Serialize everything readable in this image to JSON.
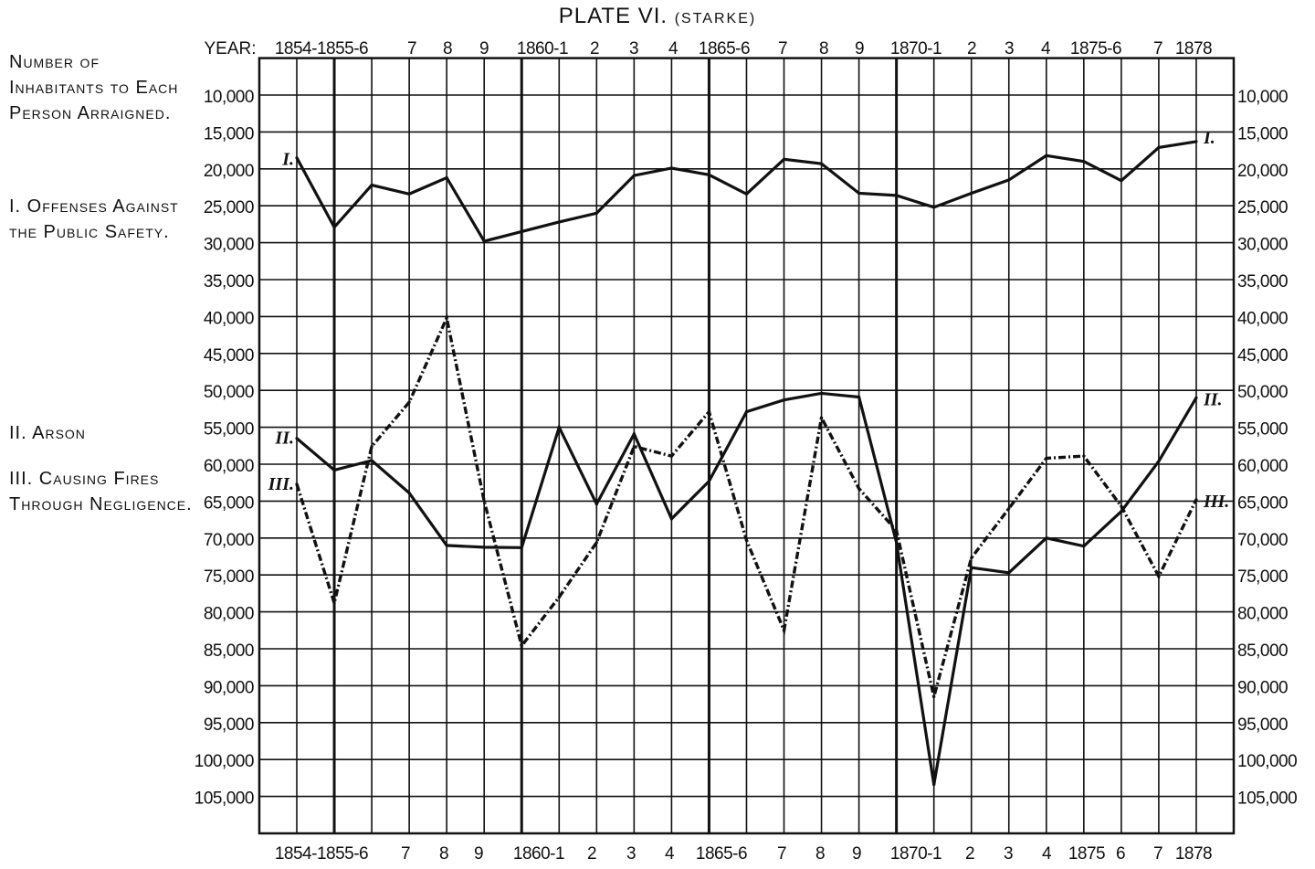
{
  "title": "PLATE VI.",
  "subtitle": "(STARKE)",
  "year_prefix": "YEAR:",
  "ylabel": "Number of Inhabitants to Each Person Arraigned.",
  "legend": {
    "i": "I. Offenses Against the Public Safety.",
    "ii": "II. Arson",
    "iii": "III. Causing Fires Through Negligence."
  },
  "series_markers": {
    "i": "I.",
    "ii": "II.",
    "iii": "III."
  },
  "top_tick_labels": [
    "1854-1855-6",
    "7",
    "8",
    "9",
    "1860-1",
    "2",
    "3",
    "4",
    "1865-6",
    "7",
    "8",
    "9",
    "1870-1",
    "2",
    "3",
    "4",
    "1875-6",
    "7",
    "1878"
  ],
  "bottom_tick_labels": [
    "1854-1855-6",
    "7",
    "8",
    "9",
    "1860-1",
    "2",
    "3",
    "4",
    "1865-6",
    "7",
    "8",
    "9",
    "1870-1",
    "2",
    "3",
    "4",
    "1875",
    "6",
    "7",
    "1878"
  ],
  "chart_data": {
    "type": "line",
    "title": "PLATE VI. (STARKE)",
    "ylabel": "Number of Inhabitants to Each Person Arraigned.",
    "y_inverted": true,
    "ylim": [
      5000,
      110000
    ],
    "grid": true,
    "y_ticks": [
      "10,000",
      "15,000",
      "20,000",
      "25,000",
      "30,000",
      "35,000",
      "40,000",
      "45,000",
      "50,000",
      "55,000",
      "60,000",
      "65,000",
      "70,000",
      "75,000",
      "80,000",
      "85,000",
      "90,000",
      "95,000",
      "100,000",
      "105,000"
    ],
    "x": [
      1854,
      1855,
      1856,
      1857,
      1858,
      1859,
      1860,
      1861,
      1862,
      1863,
      1864,
      1865,
      1866,
      1867,
      1868,
      1869,
      1870,
      1871,
      1872,
      1873,
      1874,
      1875,
      1876,
      1877,
      1878
    ],
    "series": [
      {
        "name": "I. Offenses Against the Public Safety.",
        "style": "solid",
        "values": [
          18500,
          27900,
          22200,
          23400,
          21200,
          29800,
          28500,
          27200,
          26000,
          20900,
          19900,
          20800,
          23400,
          18700,
          19300,
          23300,
          23600,
          25200,
          23300,
          21500,
          18200,
          19000,
          21600,
          17100,
          16300
        ]
      },
      {
        "name": "II. Arson",
        "style": "solid",
        "values": [
          56500,
          60800,
          59500,
          63900,
          71000,
          71250,
          71300,
          55000,
          65400,
          55900,
          67400,
          62300,
          52900,
          51300,
          50400,
          50900,
          70600,
          103400,
          74000,
          74700,
          70000,
          71100,
          66400,
          59600,
          51000
        ]
      },
      {
        "name": "III. Causing Fires Through Negligence.",
        "style": "dash-dot",
        "values": [
          62700,
          78800,
          57600,
          51600,
          40200,
          65000,
          84600,
          78000,
          70600,
          57600,
          58900,
          52900,
          70300,
          82500,
          53700,
          63300,
          69000,
          91500,
          72700,
          66000,
          59200,
          58900,
          65700,
          75200,
          64800
        ]
      }
    ]
  }
}
